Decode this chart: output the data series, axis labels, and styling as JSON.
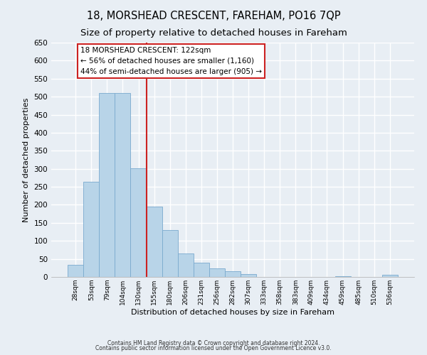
{
  "title": "18, MORSHEAD CRESCENT, FAREHAM, PO16 7QP",
  "subtitle": "Size of property relative to detached houses in Fareham",
  "xlabel": "Distribution of detached houses by size in Fareham",
  "ylabel": "Number of detached properties",
  "bar_labels": [
    "28sqm",
    "53sqm",
    "79sqm",
    "104sqm",
    "130sqm",
    "155sqm",
    "180sqm",
    "206sqm",
    "231sqm",
    "256sqm",
    "282sqm",
    "307sqm",
    "333sqm",
    "358sqm",
    "383sqm",
    "409sqm",
    "434sqm",
    "459sqm",
    "485sqm",
    "510sqm",
    "536sqm"
  ],
  "bar_values": [
    33,
    263,
    511,
    511,
    302,
    195,
    130,
    65,
    40,
    24,
    15,
    8,
    0,
    0,
    0,
    0,
    0,
    1,
    0,
    0,
    5
  ],
  "bar_color": "#b8d4e8",
  "bar_edge_color": "#7aaace",
  "vline_x_index": 4,
  "vline_color": "#cc2222",
  "annotation_title": "18 MORSHEAD CRESCENT: 122sqm",
  "annotation_line1": "← 56% of detached houses are smaller (1,160)",
  "annotation_line2": "44% of semi-detached houses are larger (905) →",
  "annotation_box_facecolor": "#ffffff",
  "annotation_box_edgecolor": "#cc2222",
  "ylim": [
    0,
    650
  ],
  "yticks": [
    0,
    50,
    100,
    150,
    200,
    250,
    300,
    350,
    400,
    450,
    500,
    550,
    600,
    650
  ],
  "footer1": "Contains HM Land Registry data © Crown copyright and database right 2024.",
  "footer2": "Contains public sector information licensed under the Open Government Licence v3.0.",
  "bg_color": "#e8eef4",
  "plot_bg_color": "#e8eef4",
  "title_fontsize": 10.5,
  "subtitle_fontsize": 9.5,
  "grid_color": "#ffffff",
  "grid_linewidth": 1.0
}
